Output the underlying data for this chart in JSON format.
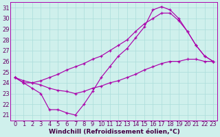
{
  "xlabel": "Windchill (Refroidissement éolien,°C)",
  "background_color": "#cff0ec",
  "grid_color": "#aaddda",
  "line_color": "#aa00aa",
  "xlim": [
    -0.5,
    23.5
  ],
  "ylim": [
    20.5,
    31.5
  ],
  "xticks": [
    0,
    1,
    2,
    3,
    4,
    5,
    6,
    7,
    8,
    9,
    10,
    11,
    12,
    13,
    14,
    15,
    16,
    17,
    18,
    19,
    20,
    21,
    22,
    23
  ],
  "yticks": [
    21,
    22,
    23,
    24,
    25,
    26,
    27,
    28,
    29,
    30,
    31
  ],
  "line1_x": [
    0,
    1,
    2,
    3,
    4,
    5,
    6,
    7,
    8,
    9,
    10,
    11,
    12,
    13,
    14,
    15,
    16,
    17,
    18,
    19,
    20,
    21,
    22,
    23
  ],
  "line1_y": [
    24.5,
    24.0,
    23.5,
    23.0,
    21.5,
    21.5,
    21.2,
    21.0,
    22.0,
    23.2,
    24.5,
    25.5,
    26.5,
    27.2,
    28.2,
    29.2,
    30.8,
    31.1,
    30.8,
    30.0,
    28.8,
    27.5,
    26.5,
    26.0
  ],
  "line2_x": [
    0,
    1,
    2,
    3,
    4,
    5,
    6,
    7,
    8,
    9,
    10,
    11,
    12,
    13,
    14,
    15,
    16,
    17,
    18,
    19,
    20,
    21,
    22,
    23
  ],
  "line2_y": [
    24.5,
    24.0,
    24.0,
    24.2,
    24.5,
    24.8,
    25.2,
    25.5,
    25.8,
    26.2,
    26.5,
    27.0,
    27.5,
    28.0,
    28.8,
    29.5,
    30.0,
    30.5,
    30.5,
    29.8,
    28.8,
    27.5,
    26.5,
    26.0
  ],
  "line3_x": [
    0,
    1,
    2,
    3,
    4,
    5,
    6,
    7,
    8,
    9,
    10,
    11,
    12,
    13,
    14,
    15,
    16,
    17,
    18,
    19,
    20,
    21,
    22,
    23
  ],
  "line3_y": [
    24.5,
    24.2,
    24.0,
    23.8,
    23.5,
    23.3,
    23.2,
    23.0,
    23.2,
    23.5,
    23.7,
    24.0,
    24.2,
    24.5,
    24.8,
    25.2,
    25.5,
    25.8,
    26.0,
    26.0,
    26.2,
    26.2,
    26.0,
    26.0
  ],
  "fontsize_label": 6.5,
  "fontsize_tick": 6
}
